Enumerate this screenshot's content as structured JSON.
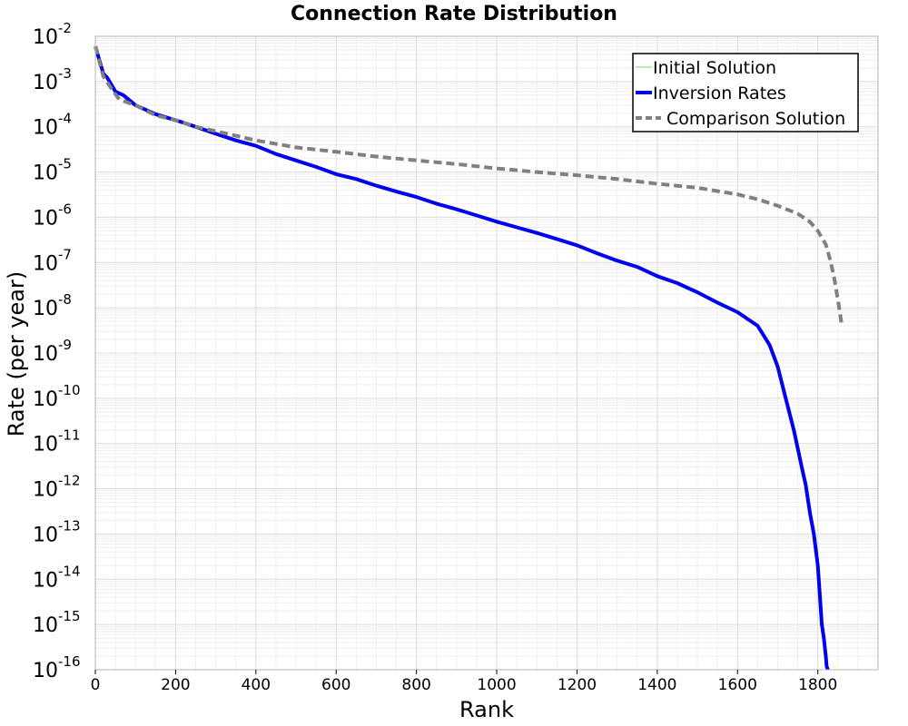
{
  "chart_data": {
    "type": "line",
    "title": "Connection Rate Distribution",
    "xlabel": "Rank",
    "ylabel": "Rate (per year)",
    "xlim": [
      0,
      1950
    ],
    "ylim": [
      1e-16,
      0.01
    ],
    "yscale": "log",
    "x_ticks": [
      "0",
      "200",
      "400",
      "600",
      "800",
      "1000",
      "1200",
      "1400",
      "1600",
      "1800"
    ],
    "y_ticks": [
      {
        "base": "10",
        "exp": "-2"
      },
      {
        "base": "10",
        "exp": "-3"
      },
      {
        "base": "10",
        "exp": "-4"
      },
      {
        "base": "10",
        "exp": "-5"
      },
      {
        "base": "10",
        "exp": "-6"
      },
      {
        "base": "10",
        "exp": "-7"
      },
      {
        "base": "10",
        "exp": "-8"
      },
      {
        "base": "10",
        "exp": "-9"
      },
      {
        "base": "10",
        "exp": "-10"
      },
      {
        "base": "10",
        "exp": "-11"
      },
      {
        "base": "10",
        "exp": "-12"
      },
      {
        "base": "10",
        "exp": "-13"
      },
      {
        "base": "10",
        "exp": "-14"
      },
      {
        "base": "10",
        "exp": "-15"
      },
      {
        "base": "10",
        "exp": "-16"
      }
    ],
    "grid": true,
    "legend_position": "top-right",
    "series": [
      {
        "name": "Initial Solution",
        "color": "#66dd66",
        "style": "solid",
        "width": 1,
        "x": [
          0,
          1820
        ],
        "y": [
          1e-16,
          1e-16
        ]
      },
      {
        "name": "Inversion Rates",
        "color": "#0000ee",
        "style": "solid",
        "width": 4,
        "x": [
          0,
          10,
          20,
          30,
          50,
          70,
          100,
          150,
          200,
          250,
          300,
          350,
          400,
          450,
          500,
          550,
          600,
          650,
          700,
          750,
          800,
          850,
          900,
          950,
          1000,
          1050,
          1100,
          1150,
          1200,
          1250,
          1300,
          1350,
          1400,
          1450,
          1500,
          1550,
          1600,
          1650,
          1680,
          1700,
          1720,
          1740,
          1760,
          1770,
          1780,
          1790,
          1800,
          1810,
          1815,
          1820,
          1822,
          1825
        ],
        "y": [
          0.006,
          0.003,
          0.0015,
          0.0012,
          0.0006,
          0.0005,
          0.0003,
          0.00019,
          0.00014,
          0.0001,
          7e-05,
          5e-05,
          3.8e-05,
          2.5e-05,
          1.8e-05,
          1.3e-05,
          9e-06,
          7e-06,
          5e-06,
          3.7e-06,
          2.8e-06,
          2e-06,
          1.5e-06,
          1.1e-06,
          8e-07,
          6e-07,
          4.5e-07,
          3.3e-07,
          2.4e-07,
          1.6e-07,
          1.1e-07,
          8e-08,
          5e-08,
          3.5e-08,
          2.2e-08,
          1.3e-08,
          8e-09,
          4e-09,
          1.5e-09,
          5e-10,
          1e-10,
          2e-11,
          3e-12,
          1.2e-12,
          3e-13,
          1e-13,
          2e-14,
          1e-15,
          5e-16,
          2e-16,
          1.2e-16,
          1e-16
        ]
      },
      {
        "name": "Comparison Solution",
        "color": "#808080",
        "style": "dashed",
        "width": 4,
        "x": [
          0,
          20,
          40,
          60,
          100,
          150,
          200,
          250,
          300,
          400,
          500,
          600,
          700,
          800,
          900,
          1000,
          1100,
          1200,
          1300,
          1400,
          1500,
          1600,
          1650,
          1700,
          1750,
          1780,
          1800,
          1820,
          1830,
          1840,
          1850,
          1860
        ],
        "y": [
          0.006,
          0.0013,
          0.0007,
          0.0004,
          0.0003,
          0.00018,
          0.00014,
          0.0001,
          8e-05,
          5e-05,
          3.5e-05,
          2.8e-05,
          2.2e-05,
          1.8e-05,
          1.5e-05,
          1.2e-05,
          1e-05,
          8.5e-06,
          7e-06,
          5.5e-06,
          4.5e-06,
          3.2e-06,
          2.5e-06,
          1.8e-06,
          1.2e-06,
          8e-07,
          5e-07,
          2.5e-07,
          1.2e-07,
          5e-08,
          1.5e-08,
          4e-09
        ]
      }
    ]
  }
}
